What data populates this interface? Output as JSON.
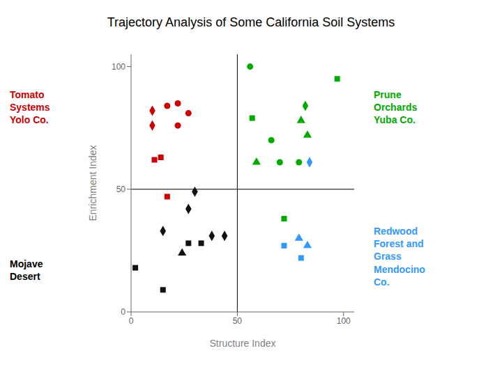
{
  "chart_data": {
    "type": "scatter",
    "title": "Trajectory Analysis of Some California Soil Systems",
    "xlabel": "Structure Index",
    "ylabel": "Enrichment Index",
    "xlim": [
      0,
      105
    ],
    "ylim": [
      0,
      105
    ],
    "xticks": [
      0,
      50,
      100
    ],
    "yticks": [
      0,
      50,
      100
    ],
    "grid": false,
    "vlines": [
      50
    ],
    "hlines": [
      50
    ],
    "series": [
      {
        "color": "#CC0000",
        "marker": "circle",
        "values": [
          [
            17,
            84
          ],
          [
            22,
            85
          ],
          [
            27,
            81
          ],
          [
            22,
            76
          ]
        ]
      },
      {
        "color": "#CC0000",
        "marker": "diamond",
        "values": [
          [
            10,
            82
          ],
          [
            10,
            76
          ]
        ]
      },
      {
        "color": "#CC0000",
        "marker": "square",
        "values": [
          [
            11,
            62
          ],
          [
            14,
            63
          ]
        ]
      },
      {
        "color": "#CC0000",
        "marker": "square",
        "values": [
          [
            17,
            47
          ]
        ]
      },
      {
        "color": "#111111",
        "marker": "diamond",
        "values": [
          [
            27,
            42
          ],
          [
            15,
            33
          ],
          [
            30,
            49
          ],
          [
            44,
            31
          ],
          [
            38,
            31
          ]
        ]
      },
      {
        "color": "#111111",
        "marker": "square",
        "values": [
          [
            2,
            18
          ],
          [
            15,
            9
          ],
          [
            27,
            28
          ],
          [
            33,
            28
          ]
        ]
      },
      {
        "color": "#111111",
        "marker": "triangle",
        "values": [
          [
            24,
            24
          ]
        ]
      },
      {
        "color": "#00AA00",
        "marker": "circle",
        "values": [
          [
            56,
            100
          ],
          [
            66,
            70
          ],
          [
            70,
            61
          ],
          [
            79,
            61
          ]
        ]
      },
      {
        "color": "#00AA00",
        "marker": "diamond",
        "values": [
          [
            82,
            84
          ]
        ]
      },
      {
        "color": "#00AA00",
        "marker": "square",
        "values": [
          [
            57,
            79
          ],
          [
            97,
            95
          ]
        ]
      },
      {
        "color": "#00AA00",
        "marker": "triangle",
        "values": [
          [
            59,
            61
          ],
          [
            80,
            78
          ],
          [
            83,
            72
          ]
        ]
      },
      {
        "color": "#00AA00",
        "marker": "square",
        "values": [
          [
            72,
            38
          ]
        ]
      },
      {
        "color": "#3399FF",
        "marker": "diamond",
        "values": [
          [
            84,
            61
          ]
        ]
      },
      {
        "color": "#3399FF",
        "marker": "square",
        "values": [
          [
            72,
            27
          ],
          [
            80,
            22
          ]
        ]
      },
      {
        "color": "#3399FF",
        "marker": "triangle",
        "values": [
          [
            79,
            30
          ],
          [
            83,
            27
          ]
        ]
      }
    ],
    "annotations": [
      {
        "text": "Tomato\nSystems\nYolo Co.",
        "color": "#CC0000"
      },
      {
        "text": "Mojave\nDesert",
        "color": "black"
      },
      {
        "text": "Prune\nOrchards\nYuba Co.",
        "color": "#00AA00"
      },
      {
        "text": "Redwood\nForest and\nGrass\nMendocino\nCo.",
        "color": "#3399FF"
      }
    ]
  }
}
